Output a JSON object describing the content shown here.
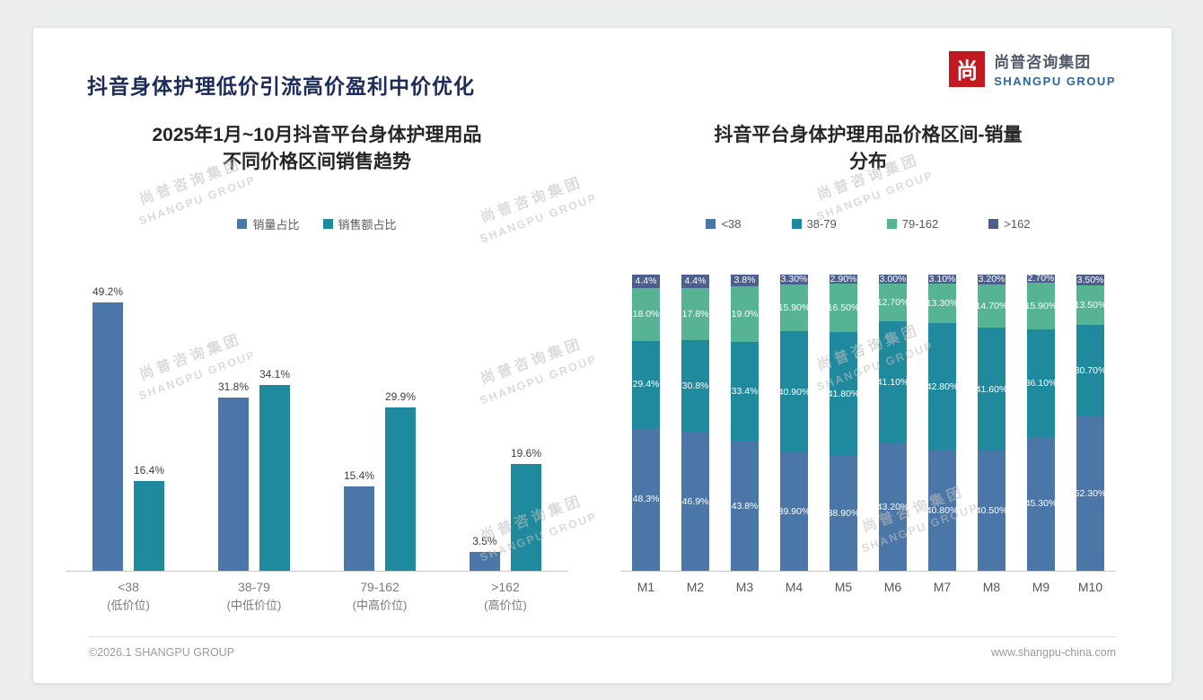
{
  "page": {
    "title": "抖音身体护理低价引流高价盈利中价优化",
    "footer_left": "©2026.1 SHANGPU GROUP",
    "footer_right": "www.shangpu-china.com"
  },
  "logo": {
    "icon_char": "尚",
    "cn": "尚普咨询集团",
    "en": "SHANGPU GROUP",
    "icon_color": "#c11a21",
    "en_color": "#2d659f"
  },
  "watermark": {
    "cn": "尚普咨询集团",
    "en": "SHANGPU GROUP"
  },
  "colors": {
    "title_navy": "#1c2b57",
    "series_blue": "#4a76a8",
    "series_teal": "#1f8a9e",
    "series_green": "#56b494",
    "series_slate": "#4d5f8e"
  },
  "chart_data": [
    {
      "type": "bar",
      "title": "2025年1月~10月抖音平台身体护理用品不同价格区间销售趋势",
      "title_lines": [
        "2025年1月~10月抖音平台身体护理用品",
        "不同价格区间销售趋势"
      ],
      "legend_position": "top",
      "grid": false,
      "ylim": [
        0,
        54
      ],
      "categories": [
        {
          "label": "<38",
          "sub": "(低价位)"
        },
        {
          "label": "38-79",
          "sub": "(中低价位)"
        },
        {
          "label": "79-162",
          "sub": "(中高价位)"
        },
        {
          "label": ">162",
          "sub": "(高价位)"
        }
      ],
      "series": [
        {
          "name": "销量占比",
          "color": "#4a76a8",
          "values": [
            49.2,
            31.8,
            15.4,
            3.5
          ],
          "labels": [
            "49.2%",
            "31.8%",
            "15.4%",
            "3.5%"
          ]
        },
        {
          "name": "销售额占比",
          "color": "#1f8a9e",
          "values": [
            16.4,
            34.1,
            29.9,
            19.6
          ],
          "labels": [
            "16.4%",
            "34.1%",
            "29.9%",
            "19.6%"
          ]
        }
      ]
    },
    {
      "type": "stacked-bar",
      "title": "抖音平台身体护理用品价格区间-销量分布",
      "title_lines": [
        "抖音平台身体护理用品价格区间-销量",
        "分布"
      ],
      "legend_position": "top",
      "grid": false,
      "ylim": [
        0,
        100
      ],
      "categories": [
        "M1",
        "M2",
        "M3",
        "M4",
        "M5",
        "M6",
        "M7",
        "M8",
        "M9",
        "M10"
      ],
      "series": [
        {
          "name": "<38",
          "color": "#4a76a8",
          "values": [
            48.3,
            46.9,
            43.8,
            39.9,
            38.9,
            43.2,
            40.8,
            40.5,
            45.3,
            52.3
          ],
          "labels": [
            "48.3%",
            "46.9%",
            "43.8%",
            "39.90%",
            "38.90%",
            "43.20%",
            "40.80%",
            "40.50%",
            "45.30%",
            "52.30%"
          ]
        },
        {
          "name": "38-79",
          "color": "#1f8a9e",
          "values": [
            29.4,
            30.8,
            33.4,
            40.9,
            41.8,
            41.1,
            42.8,
            41.6,
            36.1,
            30.7
          ],
          "labels": [
            "29.4%",
            "30.8%",
            "33.4%",
            "40.90%",
            "41.80%",
            "41.10%",
            "42.80%",
            "41.60%",
            "36.10%",
            "30.70%"
          ]
        },
        {
          "name": "79-162",
          "color": "#56b494",
          "values": [
            18.0,
            17.8,
            19.0,
            15.9,
            16.5,
            12.7,
            13.3,
            14.7,
            15.9,
            13.5
          ],
          "labels": [
            "18.0%",
            "17.8%",
            "19.0%",
            "15.90%",
            "16.50%",
            "12.70%",
            "13.30%",
            "14.70%",
            "15.90%",
            "13.50%"
          ]
        },
        {
          "name": ">162",
          "color": "#4d5f8e",
          "values": [
            4.4,
            4.4,
            3.8,
            3.3,
            2.9,
            3.0,
            3.1,
            3.2,
            2.7,
            3.5
          ],
          "labels": [
            "4.4%",
            "4.4%",
            "3.8%",
            "3.30%",
            "2.90%",
            "3.00%",
            "3.10%",
            "3.20%",
            "2.70%",
            "3.50%"
          ]
        }
      ]
    }
  ]
}
